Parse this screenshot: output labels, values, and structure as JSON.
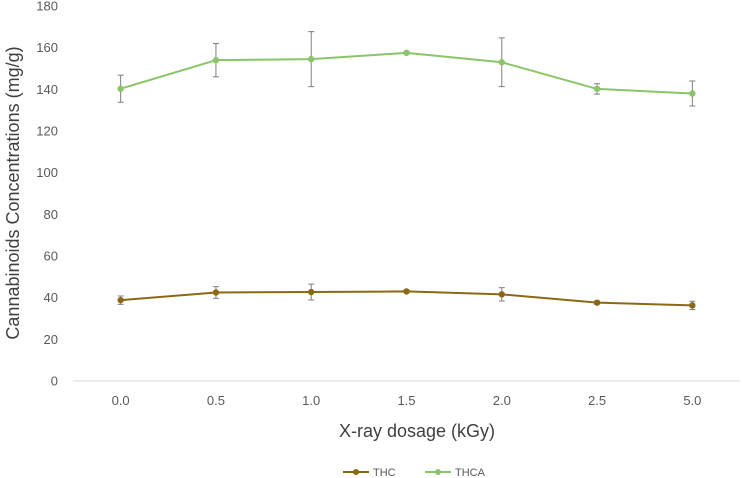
{
  "chart_data": {
    "type": "line",
    "title": "",
    "xlabel": "X-ray dosage (kGy)",
    "ylabel": "Cannabinoids Concentrations (mg/g)",
    "categories": [
      "0.0",
      "0.5",
      "1.0",
      "1.5",
      "2.0",
      "2.5",
      "5.0"
    ],
    "ylim": [
      0,
      180
    ],
    "yticks": [
      "0",
      "20",
      "40",
      "60",
      "80",
      "100",
      "120",
      "140",
      "160",
      "180"
    ],
    "grid": false,
    "legend": "bottom",
    "series": [
      {
        "name": "THC",
        "color": "#8B6914",
        "values": [
          38.8,
          42.5,
          42.7,
          43.0,
          41.6,
          37.6,
          36.3
        ],
        "errors": [
          2.0,
          2.8,
          3.8,
          0.6,
          3.2,
          0.7,
          2.0
        ]
      },
      {
        "name": "THCA",
        "color": "#8BC56A",
        "values": [
          140.3,
          154.0,
          154.5,
          157.5,
          153.0,
          140.2,
          138.0
        ],
        "errors": [
          6.5,
          8.0,
          13.2,
          0.6,
          11.7,
          2.5,
          6.0
        ]
      }
    ]
  }
}
